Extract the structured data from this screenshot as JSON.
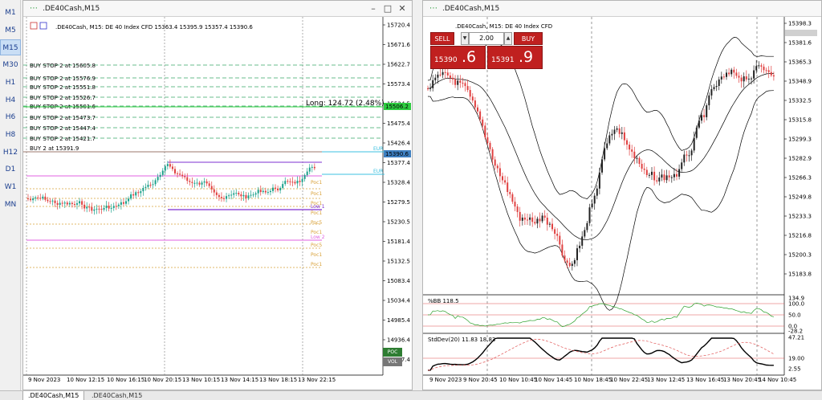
{
  "timeframes": [
    "M1",
    "M5",
    "M15",
    "M30",
    "H1",
    "H4",
    "H6",
    "H8",
    "H12",
    "D1",
    "W1",
    "MN"
  ],
  "active_timeframe": "M15",
  "left": {
    "window_title": ".DE40Cash,M15",
    "chart_info": ".DE40Cash, M15:  DE 40 Index CFD  15363.4 15395.9 15357.4 15390.6",
    "price_axis": [
      "15720.4",
      "15671.6",
      "15622.7",
      "15573.4",
      "15524.5",
      "15475.4",
      "15426.4",
      "15377.4",
      "15328.4",
      "15279.5",
      "15230.5",
      "15181.4",
      "15132.5",
      "15083.4",
      "15034.4",
      "14985.4",
      "14936.4",
      "14887.4"
    ],
    "time_axis": [
      "9 Nov 2023",
      "10 Nov 12:15",
      "10 Nov 16:15",
      "10 Nov 20:15",
      "13 Nov 10:15",
      "13 Nov 14:15",
      "13 Nov 18:15",
      "13 Nov 22:15"
    ],
    "orders": [
      "BUY STOP 2 at 15605.8",
      "BUY STOP 2 at 15576.9",
      "BUY STOP 2 at 15551.8",
      "BUY STOP 2 at 15526.7",
      "BUY STOP 2 at 15501.6",
      "BUY STOP 2 at 15473.7",
      "BUY STOP 2 at 15447.4",
      "BUY STOP 2 at 15421.7",
      "BUY 2 at 15391.9"
    ],
    "long_label": "Long: 124.72  (2.48%)",
    "price_tag_green": "15506.2",
    "price_tag_current": "15390.6",
    "eur_tag": "EUR",
    "eur_tag2": "EUR",
    "poc_labels": [
      "Poc1",
      "Poc1",
      "Poc1",
      "Poc1",
      "Poc5",
      "Poc1",
      "Poc5",
      "Poc1",
      "Poc1"
    ],
    "low_labels": [
      "Low 1",
      "Low 2"
    ],
    "poc_button": "POC",
    "vol_button": "VOL",
    "colors": {
      "green_line": "#2ecc40",
      "purple": "#7d2fd0",
      "magenta": "#e060e0",
      "orange": "#d9a23a",
      "cyan": "#3cc0e0",
      "bull": "#1aa08a",
      "bear": "#e04040"
    }
  },
  "right": {
    "window_title": ".DE40Cash,M15",
    "chart_info": ".DE40Cash, M15:  DE 40 Index CFD",
    "trade": {
      "sell_label": "SELL",
      "buy_label": "BUY",
      "lot": "2.00",
      "sell_small": "15390",
      "sell_big": ".6",
      "buy_small": "15391",
      "buy_big": ".9"
    },
    "price_axis": [
      "15398.3",
      "15381.6",
      "15365.3",
      "15348.9",
      "15332.5",
      "15315.8",
      "15299.3",
      "15282.9",
      "15266.3",
      "15249.8",
      "15233.3",
      "15216.8",
      "15200.3",
      "15183.8"
    ],
    "bb_label": "%BB 118.5",
    "bb_axis": [
      "134.9",
      "100.0",
      "50.0",
      "0.0",
      "-28.2"
    ],
    "std_label": "StdDev(20) 11.83 18.83",
    "std_axis": [
      "47.21",
      "19.00",
      "2.55"
    ],
    "time_axis": [
      "9 Nov 2023",
      "9 Nov 20:45",
      "10 Nov 10:45",
      "10 Nov 14:45",
      "10 Nov 18:45",
      "10 Nov 22:45",
      "13 Nov 12:45",
      "13 Nov 16:45",
      "13 Nov 20:45",
      "14 Nov 10:45"
    ],
    "colors": {
      "bull": "#222222",
      "bear": "#e04040",
      "band": "#000000",
      "bb_line": "#2aa02a",
      "bb_level": "#e05050",
      "std_line": "#000000",
      "std_ma": "#e05050"
    }
  },
  "tabs": [
    ".DE40Cash,M15",
    ".DE40Cash,M15"
  ]
}
